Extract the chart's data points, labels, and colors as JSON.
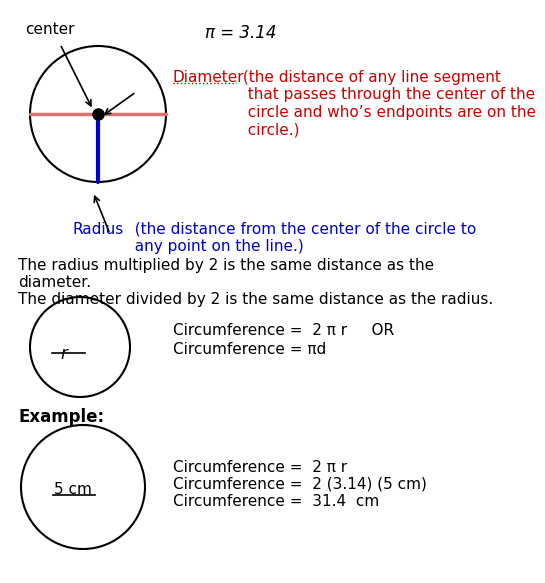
{
  "bg_color": "#ffffff",
  "title_text": "center",
  "pi_text": "π = 3.14",
  "diameter_label": "Diameter",
  "diameter_def": " (the distance of any line segment\n  that passes through the center of the\n  circle and who’s endpoints are on the\n  circle.)",
  "radius_label": "Radius",
  "radius_def": "  (the distance from the center of the circle to\n  any point on the line.)",
  "text1": "The radius multiplied by 2 is the same distance as the\ndiameter.",
  "text2": "The diameter divided by 2 is the same distance as the radius.",
  "circ_formula1": "Circumference =  2 π r     OR",
  "circ_formula2": "Circumference = πd",
  "example_label": "Example:",
  "r_label": "r",
  "example_r_label": "5 cm",
  "ex_line1": "Circumference =  2 π r",
  "ex_line2": "Circumference =  2 (3.14) (5 cm)",
  "ex_line3": "Circumference =  31.4  cm",
  "red_color": "#cc0000",
  "blue_color": "#0000cc",
  "black_color": "#000000"
}
